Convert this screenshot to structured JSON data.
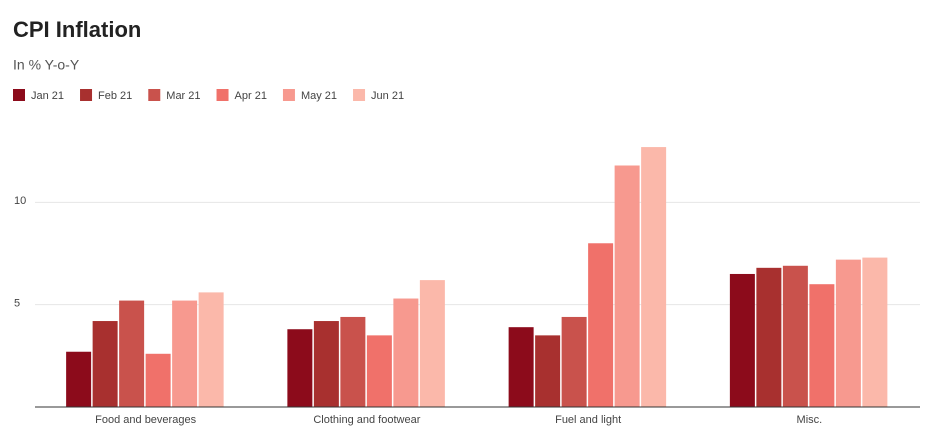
{
  "chart_data": {
    "type": "bar",
    "title": "CPI Inflation",
    "subtitle": "In % Y-o-Y",
    "categories": [
      "Food and beverages",
      "Clothing and footwear",
      "Fuel and light",
      "Misc."
    ],
    "series": [
      {
        "name": "Jan 21",
        "color": "#8c0b1b",
        "values": [
          2.7,
          3.8,
          3.9,
          6.5
        ]
      },
      {
        "name": "Feb 21",
        "color": "#a8302f",
        "values": [
          4.2,
          4.2,
          3.5,
          6.8
        ]
      },
      {
        "name": "Mar 21",
        "color": "#c9524c",
        "values": [
          5.2,
          4.4,
          4.4,
          6.9
        ]
      },
      {
        "name": "Apr 21",
        "color": "#f0716a",
        "values": [
          2.6,
          3.5,
          8.0,
          6.0
        ]
      },
      {
        "name": "May 21",
        "color": "#f7998f",
        "values": [
          5.2,
          5.3,
          11.8,
          7.2
        ]
      },
      {
        "name": "Jun 21",
        "color": "#fbb8aa",
        "values": [
          5.6,
          6.2,
          12.7,
          7.3
        ]
      }
    ],
    "ylim": [
      0,
      15
    ],
    "yticks": [
      5,
      10
    ],
    "grid": true
  }
}
